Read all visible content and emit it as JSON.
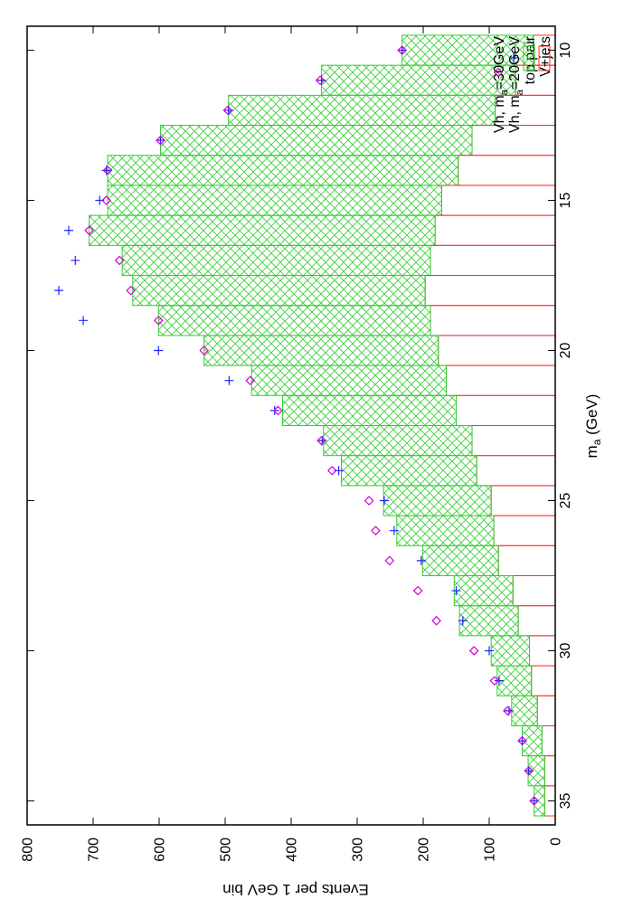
{
  "chart_data": {
    "type": "bar",
    "xlabel": "m_a (GeV)",
    "ylabel": "Events per 1 GeV bin",
    "xlim": [
      9.2,
      35.8
    ],
    "ylim": [
      0,
      800
    ],
    "x_ticks": [
      10,
      15,
      20,
      25,
      30,
      35
    ],
    "y_ticks": [
      0,
      100,
      200,
      300,
      400,
      500,
      600,
      700,
      800
    ],
    "x": [
      10,
      11,
      12,
      13,
      14,
      15,
      16,
      17,
      18,
      19,
      20,
      21,
      22,
      23,
      24,
      25,
      26,
      27,
      28,
      29,
      30,
      31,
      32,
      33,
      34,
      35
    ],
    "legend_position": "top-right",
    "series": [
      {
        "name": "V+jets",
        "style": "red-outline",
        "color": "#ff3030",
        "values": [
          33,
          60,
          91,
          126,
          147,
          172,
          182,
          189,
          197,
          189,
          177,
          165,
          150,
          126,
          119,
          97,
          93,
          86,
          64,
          56,
          39,
          36,
          27,
          20,
          16,
          16
        ]
      },
      {
        "name": "top pair",
        "style": "green-hatch",
        "color": "#32cd32",
        "values": [
          232,
          354,
          495,
          598,
          678,
          678,
          706,
          656,
          640,
          601,
          532,
          460,
          413,
          351,
          324,
          260,
          240,
          201,
          153,
          145,
          97,
          88,
          66,
          50,
          41,
          32
        ]
      },
      {
        "name": "Vh, m",
        "sub": "a",
        "suffix": "=20GeV",
        "style": "plus",
        "color": "#2020ff",
        "values": [
          232,
          354,
          495,
          598,
          680,
          690,
          737,
          727,
          752,
          715,
          601,
          494,
          425,
          353,
          328,
          259,
          244,
          203,
          150,
          140,
          100,
          85,
          70,
          50,
          40,
          32
        ]
      },
      {
        "name": "Vh, m",
        "sub": "a",
        "suffix": "=30GeV",
        "style": "diamond",
        "color": "#d400d4",
        "values": [
          232,
          356,
          496,
          598,
          678,
          680,
          706,
          660,
          643,
          601,
          532,
          462,
          420,
          354,
          338,
          282,
          272,
          251,
          208,
          180,
          123,
          92,
          72,
          50,
          40,
          32
        ]
      }
    ]
  }
}
